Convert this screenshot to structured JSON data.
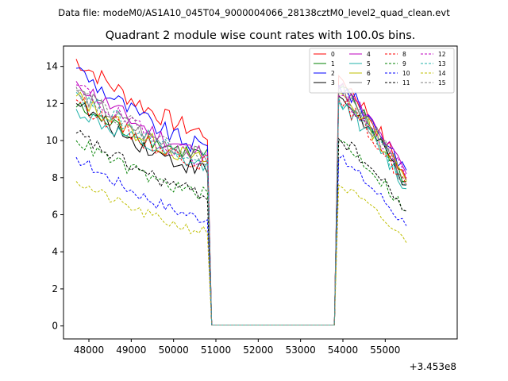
{
  "chart_data": {
    "type": "line",
    "suptitle": "Data file: modeM0/AS1A10_045T04_9000004066_28138cztM0_level2_quad_clean.evt",
    "title": "Quadrant 2 module wise count rates with 100.0s bins.",
    "xlabel": "",
    "ylabel": "",
    "x_offset_label": "+3.453e8",
    "xlim": [
      47400,
      56700
    ],
    "ylim": [
      -0.7,
      15.1
    ],
    "xticks": [
      48000,
      49000,
      50000,
      51000,
      52000,
      53000,
      54000,
      55000
    ],
    "xtick_labels": [
      "48000",
      "49000",
      "50000",
      "51000",
      "52000",
      "53000",
      "54000",
      "55000"
    ],
    "yticks": [
      0,
      2,
      4,
      6,
      8,
      10,
      12,
      14
    ],
    "ytick_labels": [
      "0",
      "2",
      "4",
      "6",
      "8",
      "10",
      "12",
      "14"
    ],
    "gap": {
      "start": 50900,
      "end": 53800,
      "value": 0.05
    },
    "segment1": {
      "x_start": 47700,
      "x_end": 50800,
      "step": 100
    },
    "segment2": {
      "x_start": 53900,
      "x_end": 55500,
      "step": 100
    },
    "legend": {
      "location": "top-right",
      "columns": 4
    },
    "series": [
      {
        "name": "0",
        "color": "#ff0000",
        "dash": "solid",
        "start1": 14.4,
        "end1": 10.4,
        "start2": 13.5,
        "end2": 7.9
      },
      {
        "name": "1",
        "color": "#008000",
        "dash": "solid",
        "start1": 11.8,
        "end1": 9.2,
        "start2": 12.8,
        "end2": 7.8
      },
      {
        "name": "2",
        "color": "#0000ff",
        "dash": "solid",
        "start1": 13.9,
        "end1": 9.6,
        "start2": 13.0,
        "end2": 8.4
      },
      {
        "name": "3",
        "color": "#000000",
        "dash": "solid",
        "start1": 12.0,
        "end1": 8.4,
        "start2": 12.4,
        "end2": 7.6
      },
      {
        "name": "4",
        "color": "#bf00bf",
        "dash": "solid",
        "start1": 13.2,
        "end1": 9.3,
        "start2": 12.9,
        "end2": 8.2
      },
      {
        "name": "5",
        "color": "#20b2aa",
        "dash": "solid",
        "start1": 11.7,
        "end1": 8.6,
        "start2": 12.1,
        "end2": 7.4
      },
      {
        "name": "6",
        "color": "#bfbf00",
        "dash": "solid",
        "start1": 12.4,
        "end1": 8.9,
        "start2": 12.6,
        "end2": 7.8
      },
      {
        "name": "7",
        "color": "#808080",
        "dash": "solid",
        "start1": 12.7,
        "end1": 9.1,
        "start2": 12.8,
        "end2": 7.7
      },
      {
        "name": "8",
        "color": "#ff0000",
        "dash": "dashed",
        "start1": 12.2,
        "end1": 8.8,
        "start2": 12.2,
        "end2": 7.6
      },
      {
        "name": "9",
        "color": "#008000",
        "dash": "dashed",
        "start1": 10.0,
        "end1": 7.1,
        "start2": 10.0,
        "end2": 6.2
      },
      {
        "name": "10",
        "color": "#0000ff",
        "dash": "dashed",
        "start1": 9.1,
        "end1": 5.8,
        "start2": 9.0,
        "end2": 5.4
      },
      {
        "name": "11",
        "color": "#000000",
        "dash": "dashed",
        "start1": 10.4,
        "end1": 7.1,
        "start2": 10.1,
        "end2": 6.2
      },
      {
        "name": "12",
        "color": "#bf00bf",
        "dash": "dashed",
        "start1": 13.0,
        "end1": 9.0,
        "start2": 12.4,
        "end2": 8.0
      },
      {
        "name": "13",
        "color": "#20b2aa",
        "dash": "dashed",
        "start1": 12.6,
        "end1": 9.1,
        "start2": 12.3,
        "end2": 7.6
      },
      {
        "name": "14",
        "color": "#bfbf00",
        "dash": "dashed",
        "start1": 7.8,
        "end1": 5.1,
        "start2": 7.6,
        "end2": 4.5
      },
      {
        "name": "15",
        "color": "#808080",
        "dash": "dashed",
        "start1": 12.9,
        "end1": 9.1,
        "start2": 12.6,
        "end2": 7.9
      }
    ]
  }
}
